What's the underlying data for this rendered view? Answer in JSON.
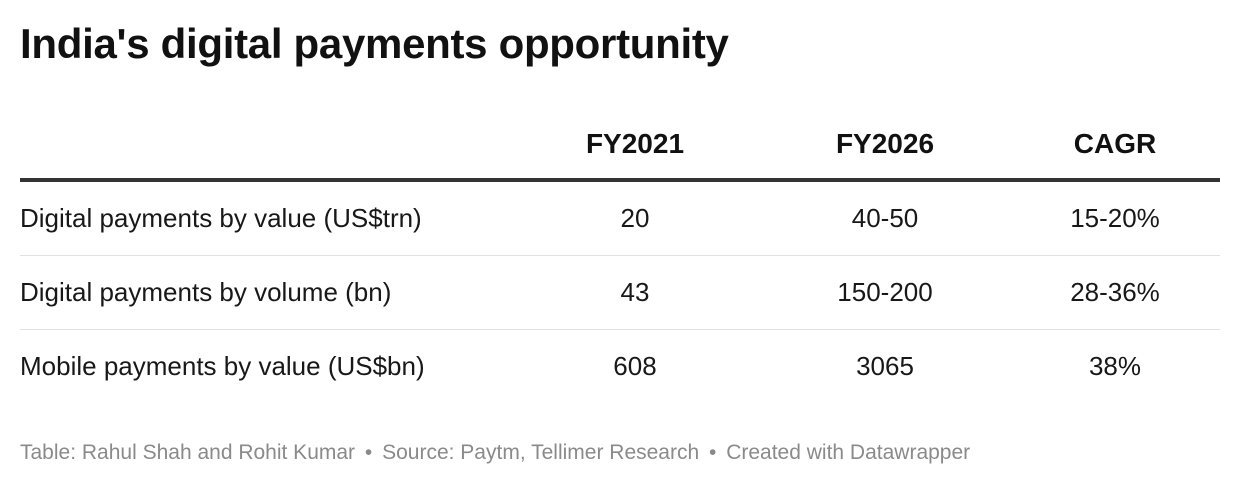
{
  "title": "India's digital payments opportunity",
  "table": {
    "headers": [
      "",
      "FY2021",
      "FY2026",
      "CAGR"
    ],
    "rows": [
      [
        "Digital payments by value (US$trn)",
        "20",
        "40-50",
        "15-20%"
      ],
      [
        "Digital payments by volume (bn)",
        "43",
        "150-200",
        "28-36%"
      ],
      [
        "Mobile payments by value (US$bn)",
        "608",
        "3065",
        "38%"
      ]
    ]
  },
  "chart_data": {
    "type": "table",
    "title": "India's digital payments opportunity",
    "columns": [
      "",
      "FY2021",
      "FY2026",
      "CAGR"
    ],
    "rows": [
      [
        "Digital payments by value (US$trn)",
        "20",
        "40-50",
        "15-20%"
      ],
      [
        "Digital payments by volume (bn)",
        "43",
        "150-200",
        "28-36%"
      ],
      [
        "Mobile payments by value (US$bn)",
        "608",
        "3065",
        "38%"
      ]
    ]
  },
  "footer": {
    "credit": "Table: Rahul Shah and Rohit Kumar",
    "separator": "•",
    "source": "Source: Paytm, Tellimer Research",
    "created": "Created with Datawrapper"
  }
}
